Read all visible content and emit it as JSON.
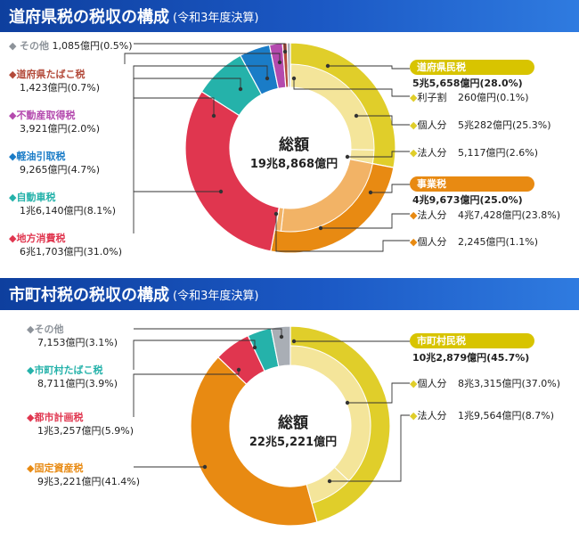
{
  "chart_data": [
    {
      "type": "pie",
      "title": "道府県税の税収の構成",
      "subtitle": "(令和3年度決算)",
      "total_label": "総額",
      "total_value": "19兆8,868億円",
      "slices": [
        {
          "name": "道府県民税",
          "value_text": "5兆5,658億円(28.0%)",
          "percent": 28.0,
          "color": "#e0ce2a"
        },
        {
          "name": "事業税",
          "value_text": "4兆9,673億円(25.0%)",
          "percent": 25.0,
          "color": "#e88a12"
        },
        {
          "name": "地方消費税",
          "value_text": "6兆1,703億円(31.0%)",
          "percent": 31.0,
          "color": "#e0364f"
        },
        {
          "name": "自動車税",
          "value_text": "1兆6,140億円(8.1%)",
          "percent": 8.1,
          "color": "#25b2aa"
        },
        {
          "name": "軽油引取税",
          "value_text": "9,265億円(4.7%)",
          "percent": 4.7,
          "color": "#1a7cc7"
        },
        {
          "name": "不動産取得税",
          "value_text": "3,921億円(2.0%)",
          "percent": 2.0,
          "color": "#b44aae"
        },
        {
          "name": "道府県たばこ税",
          "value_text": "1,423億円(0.7%)",
          "percent": 0.7,
          "color": "#b34a3a"
        },
        {
          "name": "その他",
          "value_text": "1,085億円(0.5%)",
          "percent": 0.5,
          "color": "#a9aeb5"
        }
      ],
      "sub_items": [
        {
          "name": "利子割",
          "value_text": "260億円(0.1%)",
          "percent": 0.1,
          "color": "#f4e59a",
          "parent": "道府県民税"
        },
        {
          "name": "個人分",
          "value_text": "5兆282億円(25.3%)",
          "percent": 25.3,
          "color": "#f4e59a",
          "parent": "道府県民税"
        },
        {
          "name": "法人分",
          "value_text": "5,117億円(2.6%)",
          "percent": 2.6,
          "color": "#f4e59a",
          "parent": "道府県民税"
        },
        {
          "name": "法人分",
          "value_text": "4兆7,428億円(23.8%)",
          "percent": 23.8,
          "color": "#f2b366",
          "parent": "事業税"
        },
        {
          "name": "個人分",
          "value_text": "2,245億円(1.1%)",
          "percent": 1.1,
          "color": "#f2b366",
          "parent": "事業税"
        }
      ]
    },
    {
      "type": "pie",
      "title": "市町村税の税収の構成",
      "subtitle": "(令和3年度決算)",
      "total_label": "総額",
      "total_value": "22兆5,221億円",
      "slices": [
        {
          "name": "市町村民税",
          "value_text": "10兆2,879億円(45.7%)",
          "percent": 45.7,
          "color": "#e0ce2a"
        },
        {
          "name": "固定資産税",
          "value_text": "9兆3,221億円(41.4%)",
          "percent": 41.4,
          "color": "#e88a12"
        },
        {
          "name": "都市計画税",
          "value_text": "1兆3,257億円(5.9%)",
          "percent": 5.9,
          "color": "#e0364f"
        },
        {
          "name": "市町村たばこ税",
          "value_text": "8,711億円(3.9%)",
          "percent": 3.9,
          "color": "#25b2aa"
        },
        {
          "name": "その他",
          "value_text": "7,153億円(3.1%)",
          "percent": 3.1,
          "color": "#a9aeb5"
        }
      ],
      "sub_items": [
        {
          "name": "個人分",
          "value_text": "8兆3,315億円(37.0%)",
          "percent": 37.0,
          "color": "#f4e59a",
          "parent": "市町村民税"
        },
        {
          "name": "法人分",
          "value_text": "1兆9,564億円(8.7%)",
          "percent": 8.7,
          "color": "#f4e59a",
          "parent": "市町村民税"
        }
      ]
    }
  ]
}
